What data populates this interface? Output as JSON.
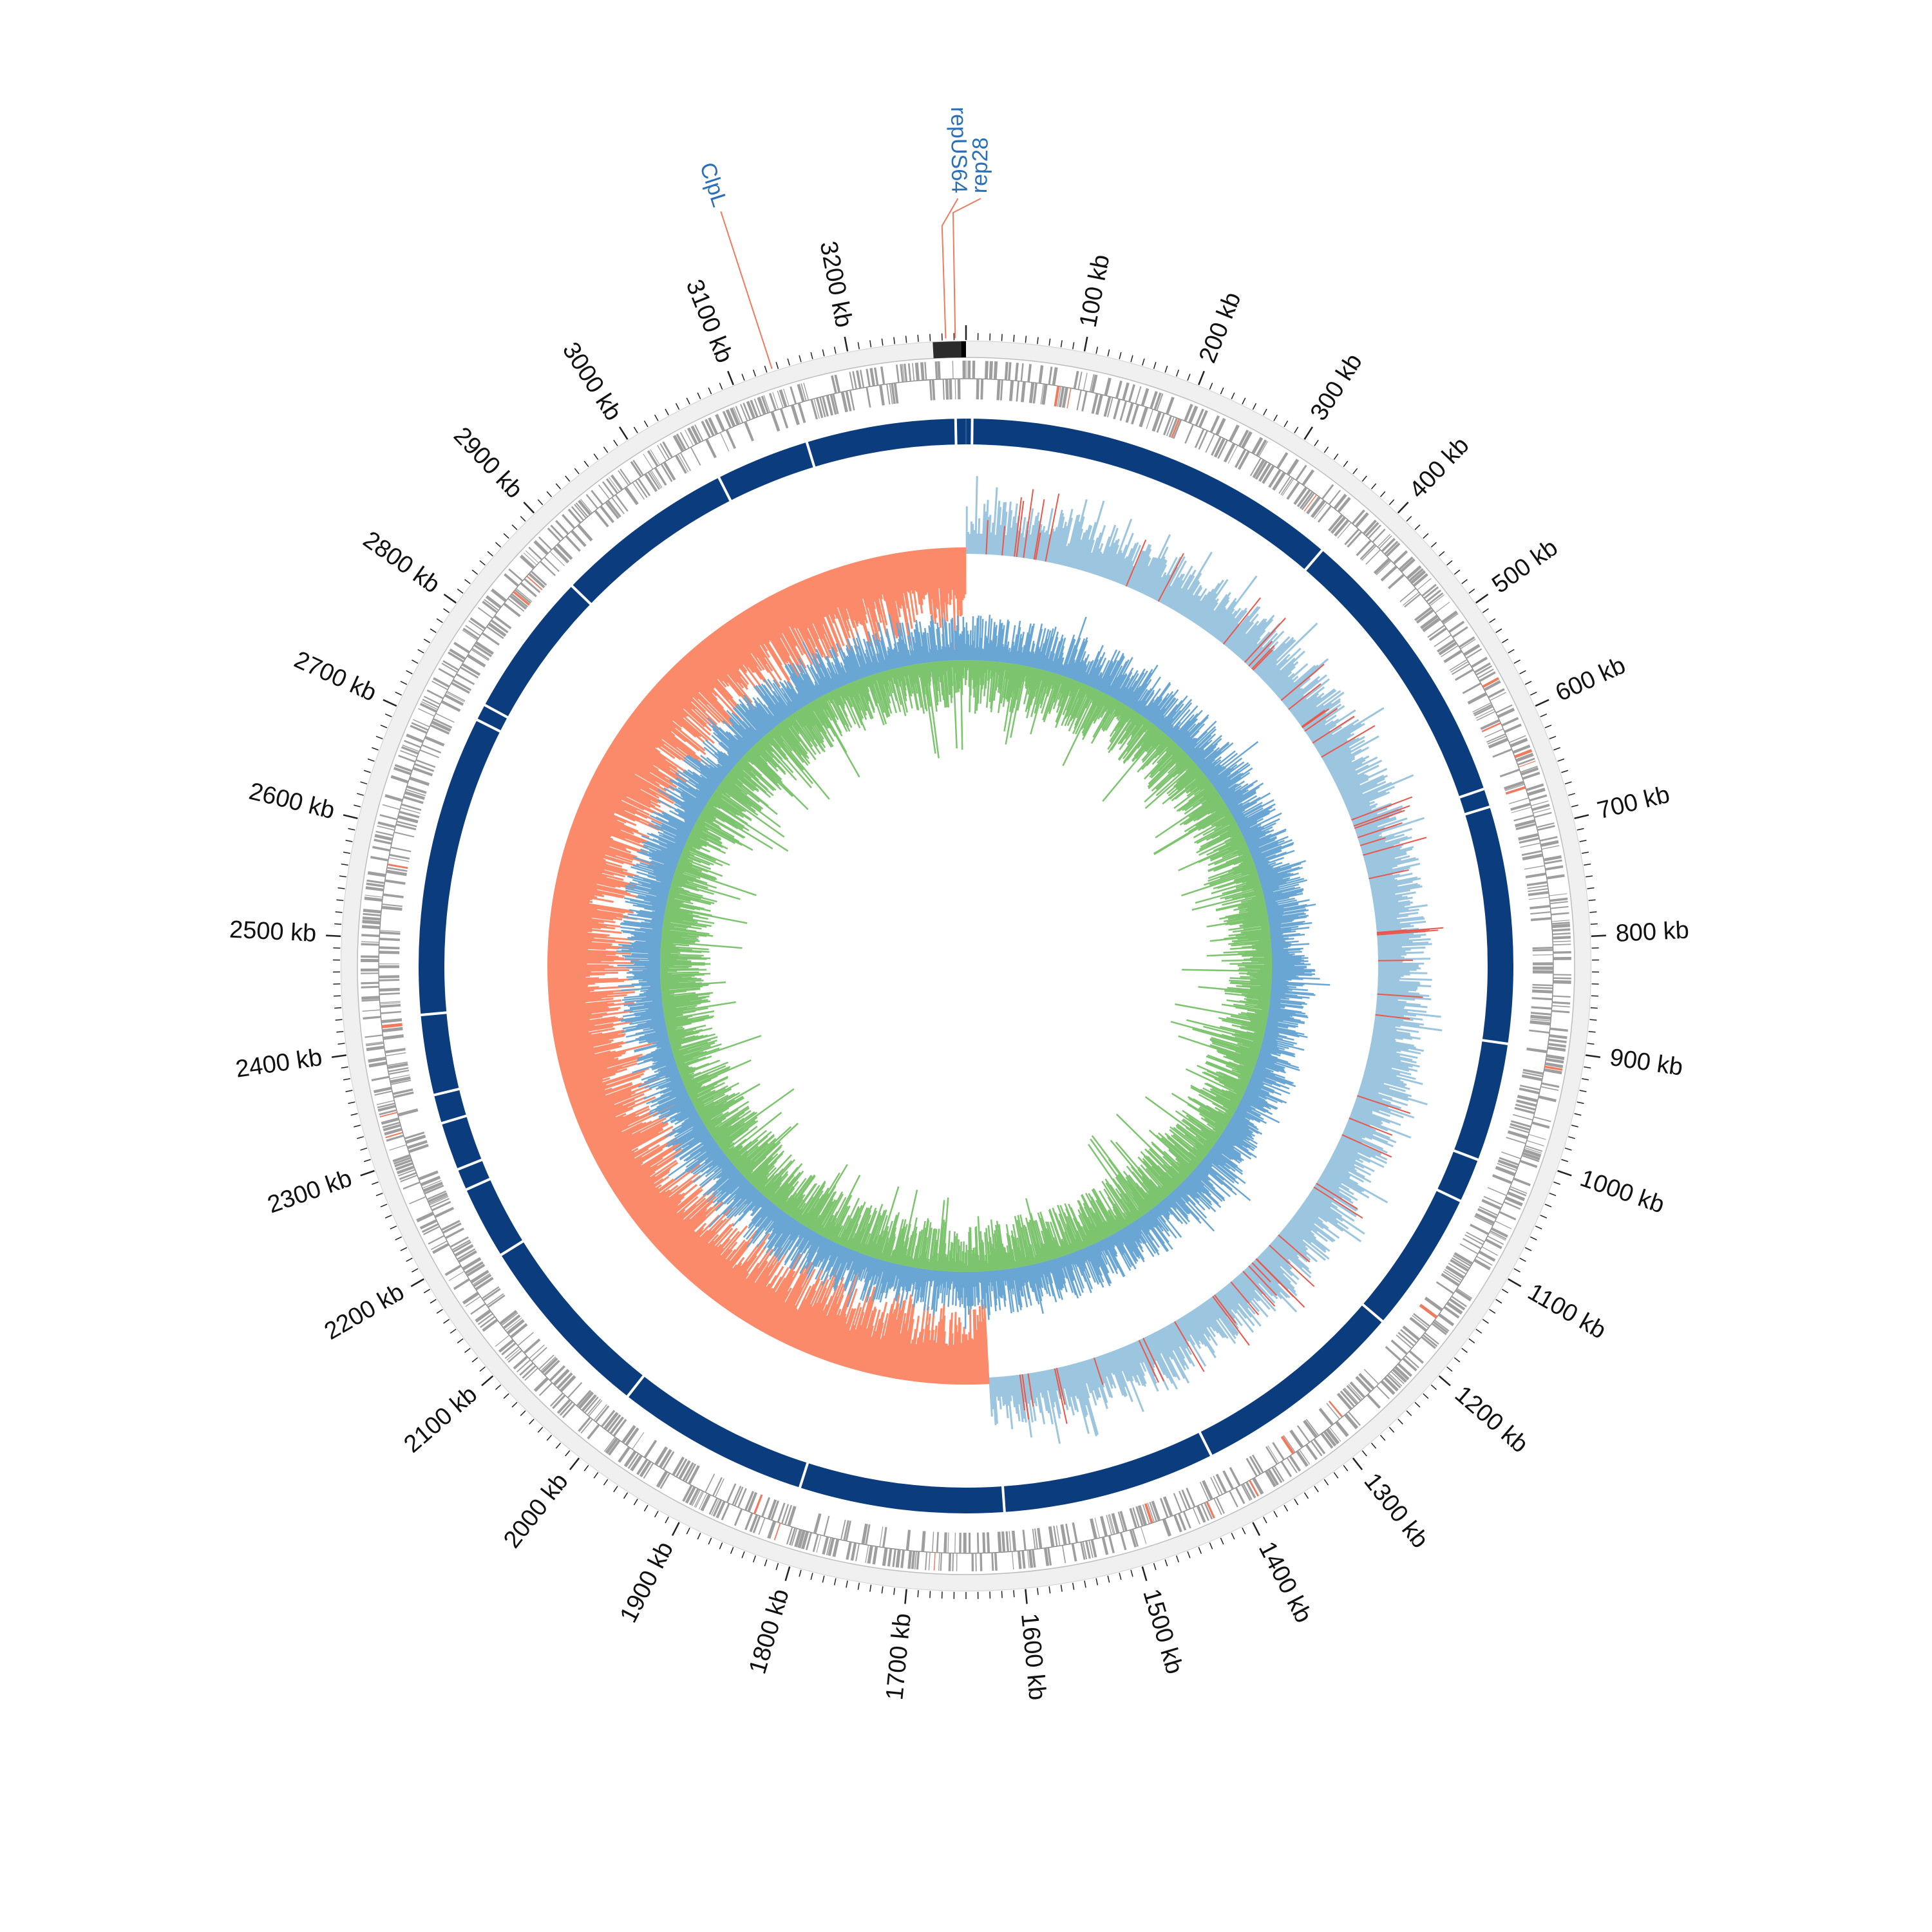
{
  "genome": {
    "length_kb": 3300,
    "tick_labels": [
      "100 kb",
      "200 kb",
      "300 kb",
      "400 kb",
      "500 kb",
      "600 kb",
      "700 kb",
      "800 kb",
      "900 kb",
      "1000 kb",
      "1100 kb",
      "1200 kb",
      "1300 kb",
      "1400 kb",
      "1500 kb",
      "1600 kb",
      "1700 kb",
      "1800 kb",
      "1900 kb",
      "2000 kb",
      "2100 kb",
      "2200 kb",
      "2300 kb",
      "2400 kb",
      "2500 kb",
      "2600 kb",
      "2700 kb",
      "2800 kb",
      "2900 kb",
      "3000 kb",
      "3100 kb",
      "3200 kb"
    ],
    "tick_positions_kb": [
      100,
      200,
      300,
      400,
      500,
      600,
      700,
      800,
      900,
      1000,
      1100,
      1200,
      1300,
      1400,
      1500,
      1600,
      1700,
      1800,
      1900,
      2000,
      2100,
      2200,
      2300,
      2400,
      2500,
      2600,
      2700,
      2800,
      2900,
      3000,
      3100,
      3200
    ]
  },
  "annotations": [
    {
      "label": "ClpL",
      "position_kb": 3135
    },
    {
      "label": "repUS64",
      "position_kb": 3283
    },
    {
      "label": "rep28",
      "position_kb": 3291
    }
  ],
  "tracks": {
    "contig_marker_span_kb": [
      3272,
      3300
    ],
    "gap_positions_kb": [
      6,
      372,
      652,
      670,
      900,
      1015,
      1058,
      1196,
      1406,
      1613,
      1812,
      2000,
      2183,
      2254,
      2275,
      2322,
      2350,
      2428,
      2720,
      2736,
      2878,
      3054,
      3145,
      3290
    ],
    "colors": {
      "outer_band": "#f0f0f0",
      "genes": "#9e9e9e",
      "genes_highlight": "#f07a5e",
      "backbone": "#0b3d7e",
      "gc_skew_positive": "#9cc6e0",
      "gc_skew_negative": "#fa8a6a",
      "gc_content_outer": "#6aa6d4",
      "gc_content_inner": "#7cc46e",
      "annotation_line": "#f07a5e"
    }
  }
}
